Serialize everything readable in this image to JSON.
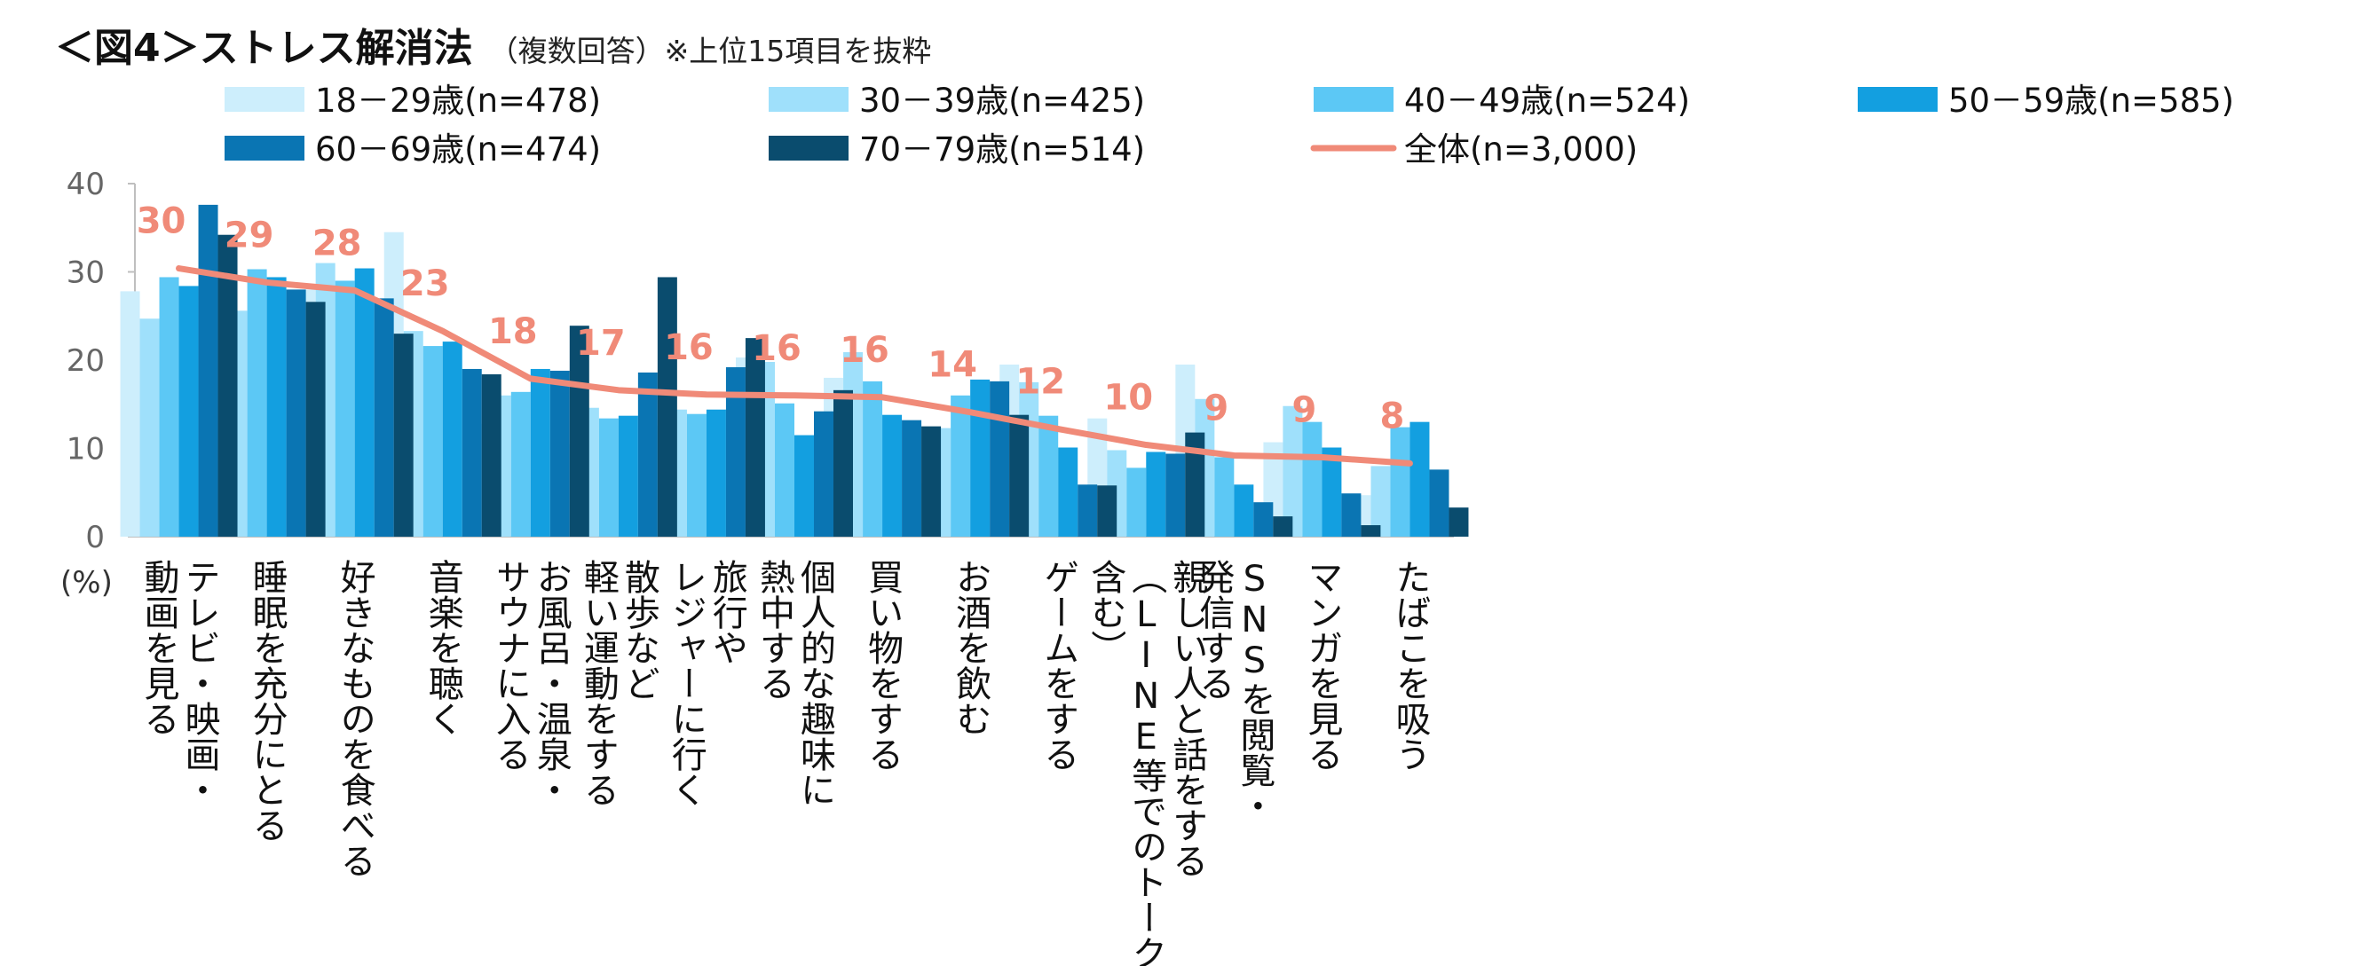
{
  "title": {
    "main": "＜図4＞ストレス解消法",
    "sub": "（複数回答）※上位15項目を抜粋"
  },
  "chart_data": {
    "type": "bar",
    "unit_label": "(%)",
    "ylim": [
      0,
      40
    ],
    "yticks": [
      0,
      10,
      20,
      30,
      40
    ],
    "legend_position": "top",
    "categories": [
      "テレビ・映画・動画を見る",
      "睡眠を充分にとる",
      "好きなものを食べる",
      "音楽を聴く",
      "お風呂・温泉・サウナに入る",
      "散歩など軽い運動をする",
      "旅行やレジャーに行く",
      "個人的な趣味に熱中する",
      "買い物をする",
      "お酒を飲む",
      "ゲームをする",
      "親しい人と話をする（LINE等でのトークを含む）",
      "SNSを閲覧・発信する",
      "マンガを見る",
      "たばこを吸う"
    ],
    "category_lines": [
      [
        "テレビ・映画・",
        "動画を見る"
      ],
      [
        "睡眠を充分にとる"
      ],
      [
        "好きなものを食べる"
      ],
      [
        "音楽を聴く"
      ],
      [
        "お風呂・温泉・",
        "サウナに入る"
      ],
      [
        "散歩など",
        "軽い運動をする"
      ],
      [
        "旅行や",
        "レジャーに行く"
      ],
      [
        "個人的な趣味に",
        "熱中する"
      ],
      [
        "買い物をする"
      ],
      [
        "お酒を飲む"
      ],
      [
        "ゲームをする"
      ],
      [
        "親しい人と話をする",
        "（LINE等でのトークを",
        "含む）"
      ],
      [
        "SNSを閲覧・",
        "発信する"
      ],
      [
        "マンガを見る"
      ],
      [
        "たばこを吸う"
      ]
    ],
    "series": [
      {
        "name": "18－29歳(n=478)",
        "color": "#cdeefc",
        "values": [
          27.8,
          31.0,
          28.0,
          34.5,
          12.8,
          10.5,
          12.6,
          20.3,
          18.0,
          6.1,
          19.5,
          13.4,
          19.5,
          10.7,
          4.7
        ]
      },
      {
        "name": "30－39歳(n=425)",
        "color": "#9fe0fb",
        "values": [
          24.7,
          25.6,
          31.0,
          23.3,
          16.0,
          14.6,
          14.4,
          19.8,
          20.9,
          12.3,
          17.5,
          9.8,
          15.6,
          14.8,
          8.0
        ]
      },
      {
        "name": "40－49歳(n=524)",
        "color": "#5cc8f5",
        "values": [
          29.4,
          30.3,
          29.0,
          21.6,
          16.4,
          13.4,
          13.9,
          15.1,
          17.6,
          16.0,
          13.7,
          7.8,
          9.0,
          13.0,
          12.4
        ]
      },
      {
        "name": "50－59歳(n=585)",
        "color": "#139fe0",
        "values": [
          28.4,
          29.4,
          30.4,
          22.1,
          19.0,
          13.7,
          14.4,
          11.5,
          13.8,
          17.8,
          10.1,
          9.6,
          5.9,
          10.1,
          13.0
        ]
      },
      {
        "name": "60－69歳(n=474)",
        "color": "#0a75b3",
        "values": [
          37.6,
          28.0,
          27.0,
          19.0,
          18.8,
          18.6,
          19.2,
          14.2,
          13.2,
          17.6,
          5.9,
          9.4,
          3.9,
          4.9,
          7.6
        ]
      },
      {
        "name": "70－79歳(n=514)",
        "color": "#0a4c6e",
        "values": [
          34.2,
          26.6,
          23.0,
          18.4,
          23.9,
          29.4,
          22.5,
          16.6,
          12.5,
          13.8,
          5.8,
          11.8,
          2.3,
          1.3,
          3.3
        ]
      }
    ],
    "total": {
      "name": "全体(n=3,000)",
      "color": "#f08a78",
      "values": [
        30.4,
        28.8,
        27.9,
        23.3,
        17.9,
        16.6,
        16.1,
        16.0,
        15.8,
        14.1,
        12.2,
        10.4,
        9.2,
        9.0,
        8.3
      ],
      "labels": [
        "30",
        "29",
        "28",
        "23",
        "18",
        "17",
        "16",
        "16",
        "16",
        "14",
        "12",
        "10",
        "9",
        "9",
        "8"
      ]
    }
  }
}
